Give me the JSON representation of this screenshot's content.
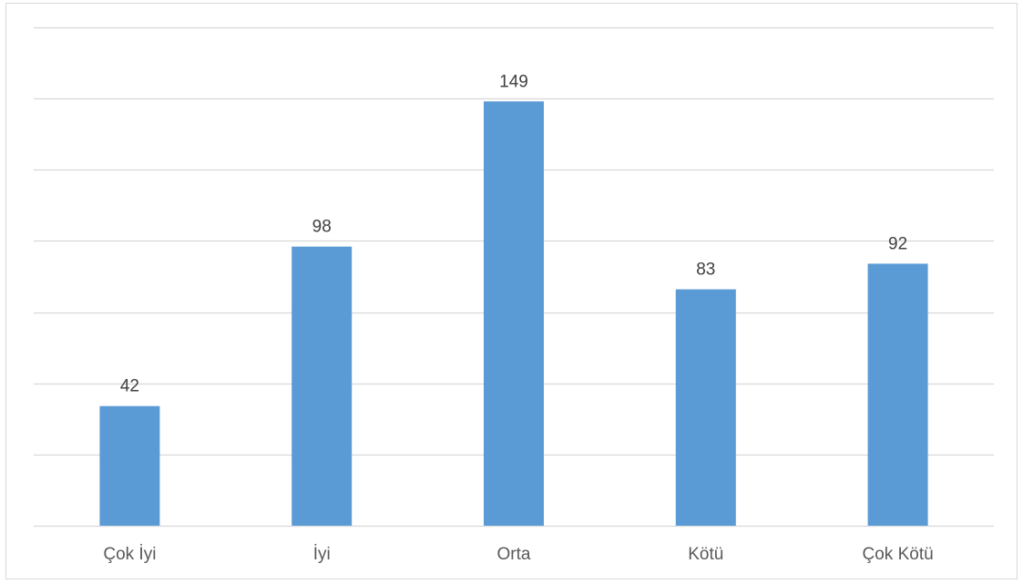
{
  "chart_data": {
    "type": "bar",
    "categories": [
      "Çok İyi",
      "İyi",
      "Orta",
      "Kötü",
      "Çok Kötü"
    ],
    "values": [
      42,
      98,
      149,
      83,
      92
    ],
    "data_labels": [
      "42",
      "98",
      "149",
      "83",
      "92"
    ],
    "title": "",
    "xlabel": "",
    "ylabel": "",
    "ylim": [
      0,
      175
    ],
    "grid": true,
    "legend": "none",
    "colors": {
      "bar": "#5b9bd5",
      "grid": "#d9d9d9",
      "data_label": "#404040",
      "tick_label": "#595959",
      "border": "#d9d9d9"
    }
  }
}
